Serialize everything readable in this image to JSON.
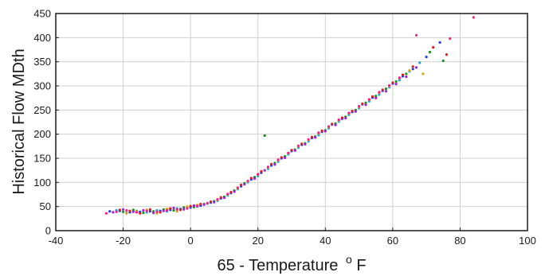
{
  "chart_data": {
    "type": "scatter",
    "xlabel": "65 - Temperature",
    "xlabel_superscript": "o",
    "xlabel_unit": "F",
    "ylabel": "Historical Flow MDth",
    "xlim": [
      -40,
      100
    ],
    "ylim": [
      0,
      450
    ],
    "xticks": [
      -40,
      -20,
      0,
      20,
      40,
      60,
      80,
      100
    ],
    "yticks": [
      0,
      50,
      100,
      150,
      200,
      250,
      300,
      350,
      400,
      450
    ],
    "grid": true,
    "legend": "none",
    "series": [
      {
        "color": "#1f3fe0",
        "points": [
          [
            -24,
            40
          ],
          [
            -21,
            41
          ],
          [
            -18,
            38
          ],
          [
            -15,
            39
          ],
          [
            -12,
            40
          ],
          [
            -9,
            41
          ],
          [
            -6,
            43
          ],
          [
            -3,
            45
          ],
          [
            0,
            48
          ],
          [
            3,
            52
          ],
          [
            6,
            58
          ],
          [
            9,
            67
          ],
          [
            12,
            78
          ],
          [
            15,
            92
          ],
          [
            18,
            106
          ],
          [
            21,
            120
          ],
          [
            24,
            135
          ],
          [
            27,
            150
          ],
          [
            30,
            165
          ],
          [
            33,
            178
          ],
          [
            36,
            192
          ],
          [
            39,
            205
          ],
          [
            42,
            220
          ],
          [
            45,
            232
          ],
          [
            48,
            246
          ],
          [
            51,
            262
          ],
          [
            54,
            276
          ],
          [
            57,
            290
          ],
          [
            60,
            305
          ],
          [
            63,
            320
          ],
          [
            66,
            335
          ],
          [
            70,
            360
          ],
          [
            74,
            390
          ]
        ]
      },
      {
        "color": "#1fa0e0",
        "points": [
          [
            -22,
            42
          ],
          [
            -19,
            37
          ],
          [
            -16,
            41
          ],
          [
            -13,
            38
          ],
          [
            -10,
            42
          ],
          [
            -7,
            40
          ],
          [
            -4,
            46
          ],
          [
            -1,
            47
          ],
          [
            2,
            50
          ],
          [
            5,
            56
          ],
          [
            8,
            62
          ],
          [
            11,
            73
          ],
          [
            14,
            86
          ],
          [
            17,
            100
          ],
          [
            20,
            113
          ],
          [
            23,
            128
          ],
          [
            26,
            143
          ],
          [
            29,
            158
          ],
          [
            32,
            172
          ],
          [
            35,
            185
          ],
          [
            38,
            198
          ],
          [
            41,
            212
          ],
          [
            44,
            226
          ],
          [
            47,
            240
          ],
          [
            50,
            254
          ],
          [
            53,
            268
          ],
          [
            56,
            282
          ],
          [
            59,
            297
          ],
          [
            62,
            312
          ],
          [
            65,
            330
          ],
          [
            68,
            348
          ]
        ]
      },
      {
        "color": "#1a8f1a",
        "points": [
          [
            -20,
            39
          ],
          [
            -17,
            43
          ],
          [
            -14,
            37
          ],
          [
            -11,
            40
          ],
          [
            -8,
            44
          ],
          [
            -5,
            42
          ],
          [
            -2,
            48
          ],
          [
            1,
            49
          ],
          [
            4,
            55
          ],
          [
            7,
            61
          ],
          [
            10,
            70
          ],
          [
            13,
            83
          ],
          [
            16,
            98
          ],
          [
            19,
            111
          ],
          [
            22,
            197
          ],
          [
            25,
            140
          ],
          [
            28,
            154
          ],
          [
            31,
            168
          ],
          [
            34,
            181
          ],
          [
            37,
            195
          ],
          [
            40,
            208
          ],
          [
            43,
            222
          ],
          [
            46,
            236
          ],
          [
            49,
            250
          ],
          [
            52,
            265
          ],
          [
            55,
            279
          ],
          [
            58,
            294
          ],
          [
            61,
            309
          ],
          [
            64,
            325
          ],
          [
            71,
            370
          ],
          [
            75,
            352
          ]
        ]
      },
      {
        "color": "#e0a000",
        "points": [
          [
            -19,
            36
          ],
          [
            -16,
            40
          ],
          [
            -13,
            43
          ],
          [
            -10,
            36
          ],
          [
            -7,
            45
          ],
          [
            -4,
            40
          ],
          [
            -1,
            50
          ],
          [
            2,
            53
          ],
          [
            5,
            57
          ],
          [
            8,
            64
          ],
          [
            11,
            75
          ],
          [
            14,
            88
          ],
          [
            17,
            102
          ],
          [
            20,
            116
          ],
          [
            23,
            131
          ],
          [
            26,
            146
          ],
          [
            29,
            160
          ],
          [
            32,
            175
          ],
          [
            35,
            188
          ],
          [
            38,
            202
          ],
          [
            41,
            215
          ],
          [
            44,
            229
          ],
          [
            47,
            243
          ],
          [
            50,
            257
          ],
          [
            53,
            271
          ],
          [
            56,
            286
          ],
          [
            59,
            300
          ],
          [
            62,
            316
          ],
          [
            65,
            332
          ],
          [
            69,
            325
          ]
        ]
      },
      {
        "color": "#e02020",
        "points": [
          [
            -21,
            43
          ],
          [
            -18,
            41
          ],
          [
            -15,
            36
          ],
          [
            -12,
            44
          ],
          [
            -9,
            38
          ],
          [
            -6,
            46
          ],
          [
            -3,
            43
          ],
          [
            0,
            51
          ],
          [
            3,
            55
          ],
          [
            6,
            60
          ],
          [
            9,
            69
          ],
          [
            12,
            80
          ],
          [
            15,
            95
          ],
          [
            18,
            109
          ],
          [
            21,
            123
          ],
          [
            24,
            138
          ],
          [
            27,
            152
          ],
          [
            30,
            167
          ],
          [
            33,
            180
          ],
          [
            36,
            194
          ],
          [
            39,
            207
          ],
          [
            42,
            221
          ],
          [
            45,
            234
          ],
          [
            48,
            248
          ],
          [
            51,
            263
          ],
          [
            54,
            278
          ],
          [
            57,
            292
          ],
          [
            60,
            307
          ],
          [
            63,
            323
          ],
          [
            66,
            340
          ],
          [
            72,
            380
          ],
          [
            76,
            365
          ]
        ]
      },
      {
        "color": "#a020e0",
        "points": [
          [
            -23,
            38
          ],
          [
            -20,
            44
          ],
          [
            -17,
            39
          ],
          [
            -14,
            42
          ],
          [
            -11,
            37
          ],
          [
            -8,
            41
          ],
          [
            -5,
            47
          ],
          [
            -2,
            44
          ],
          [
            1,
            52
          ],
          [
            4,
            54
          ],
          [
            7,
            59
          ],
          [
            10,
            68
          ],
          [
            13,
            81
          ],
          [
            16,
            96
          ],
          [
            19,
            108
          ],
          [
            22,
            125
          ],
          [
            25,
            137
          ],
          [
            28,
            151
          ],
          [
            31,
            166
          ],
          [
            34,
            179
          ],
          [
            37,
            193
          ],
          [
            40,
            206
          ],
          [
            43,
            219
          ],
          [
            46,
            233
          ],
          [
            49,
            247
          ],
          [
            52,
            261
          ],
          [
            55,
            275
          ],
          [
            58,
            289
          ],
          [
            61,
            304
          ],
          [
            64,
            319
          ],
          [
            67,
            338
          ]
        ]
      },
      {
        "color": "#ff1a8c",
        "points": [
          [
            -25,
            36
          ],
          [
            -22,
            39
          ],
          [
            -19,
            42
          ],
          [
            -16,
            38
          ],
          [
            -13,
            41
          ],
          [
            -10,
            39
          ],
          [
            -7,
            42
          ],
          [
            -4,
            44
          ],
          [
            -1,
            46
          ],
          [
            2,
            51
          ],
          [
            5,
            57
          ],
          [
            8,
            65
          ],
          [
            11,
            76
          ],
          [
            14,
            89
          ],
          [
            17,
            103
          ],
          [
            20,
            117
          ],
          [
            23,
            132
          ],
          [
            26,
            147
          ],
          [
            29,
            161
          ],
          [
            32,
            176
          ],
          [
            35,
            189
          ],
          [
            38,
            203
          ],
          [
            41,
            216
          ],
          [
            44,
            230
          ],
          [
            47,
            244
          ],
          [
            50,
            258
          ],
          [
            53,
            272
          ],
          [
            56,
            287
          ],
          [
            59,
            301
          ],
          [
            62,
            317
          ],
          [
            67,
            405
          ],
          [
            77,
            398
          ],
          [
            84,
            442
          ]
        ]
      }
    ]
  }
}
